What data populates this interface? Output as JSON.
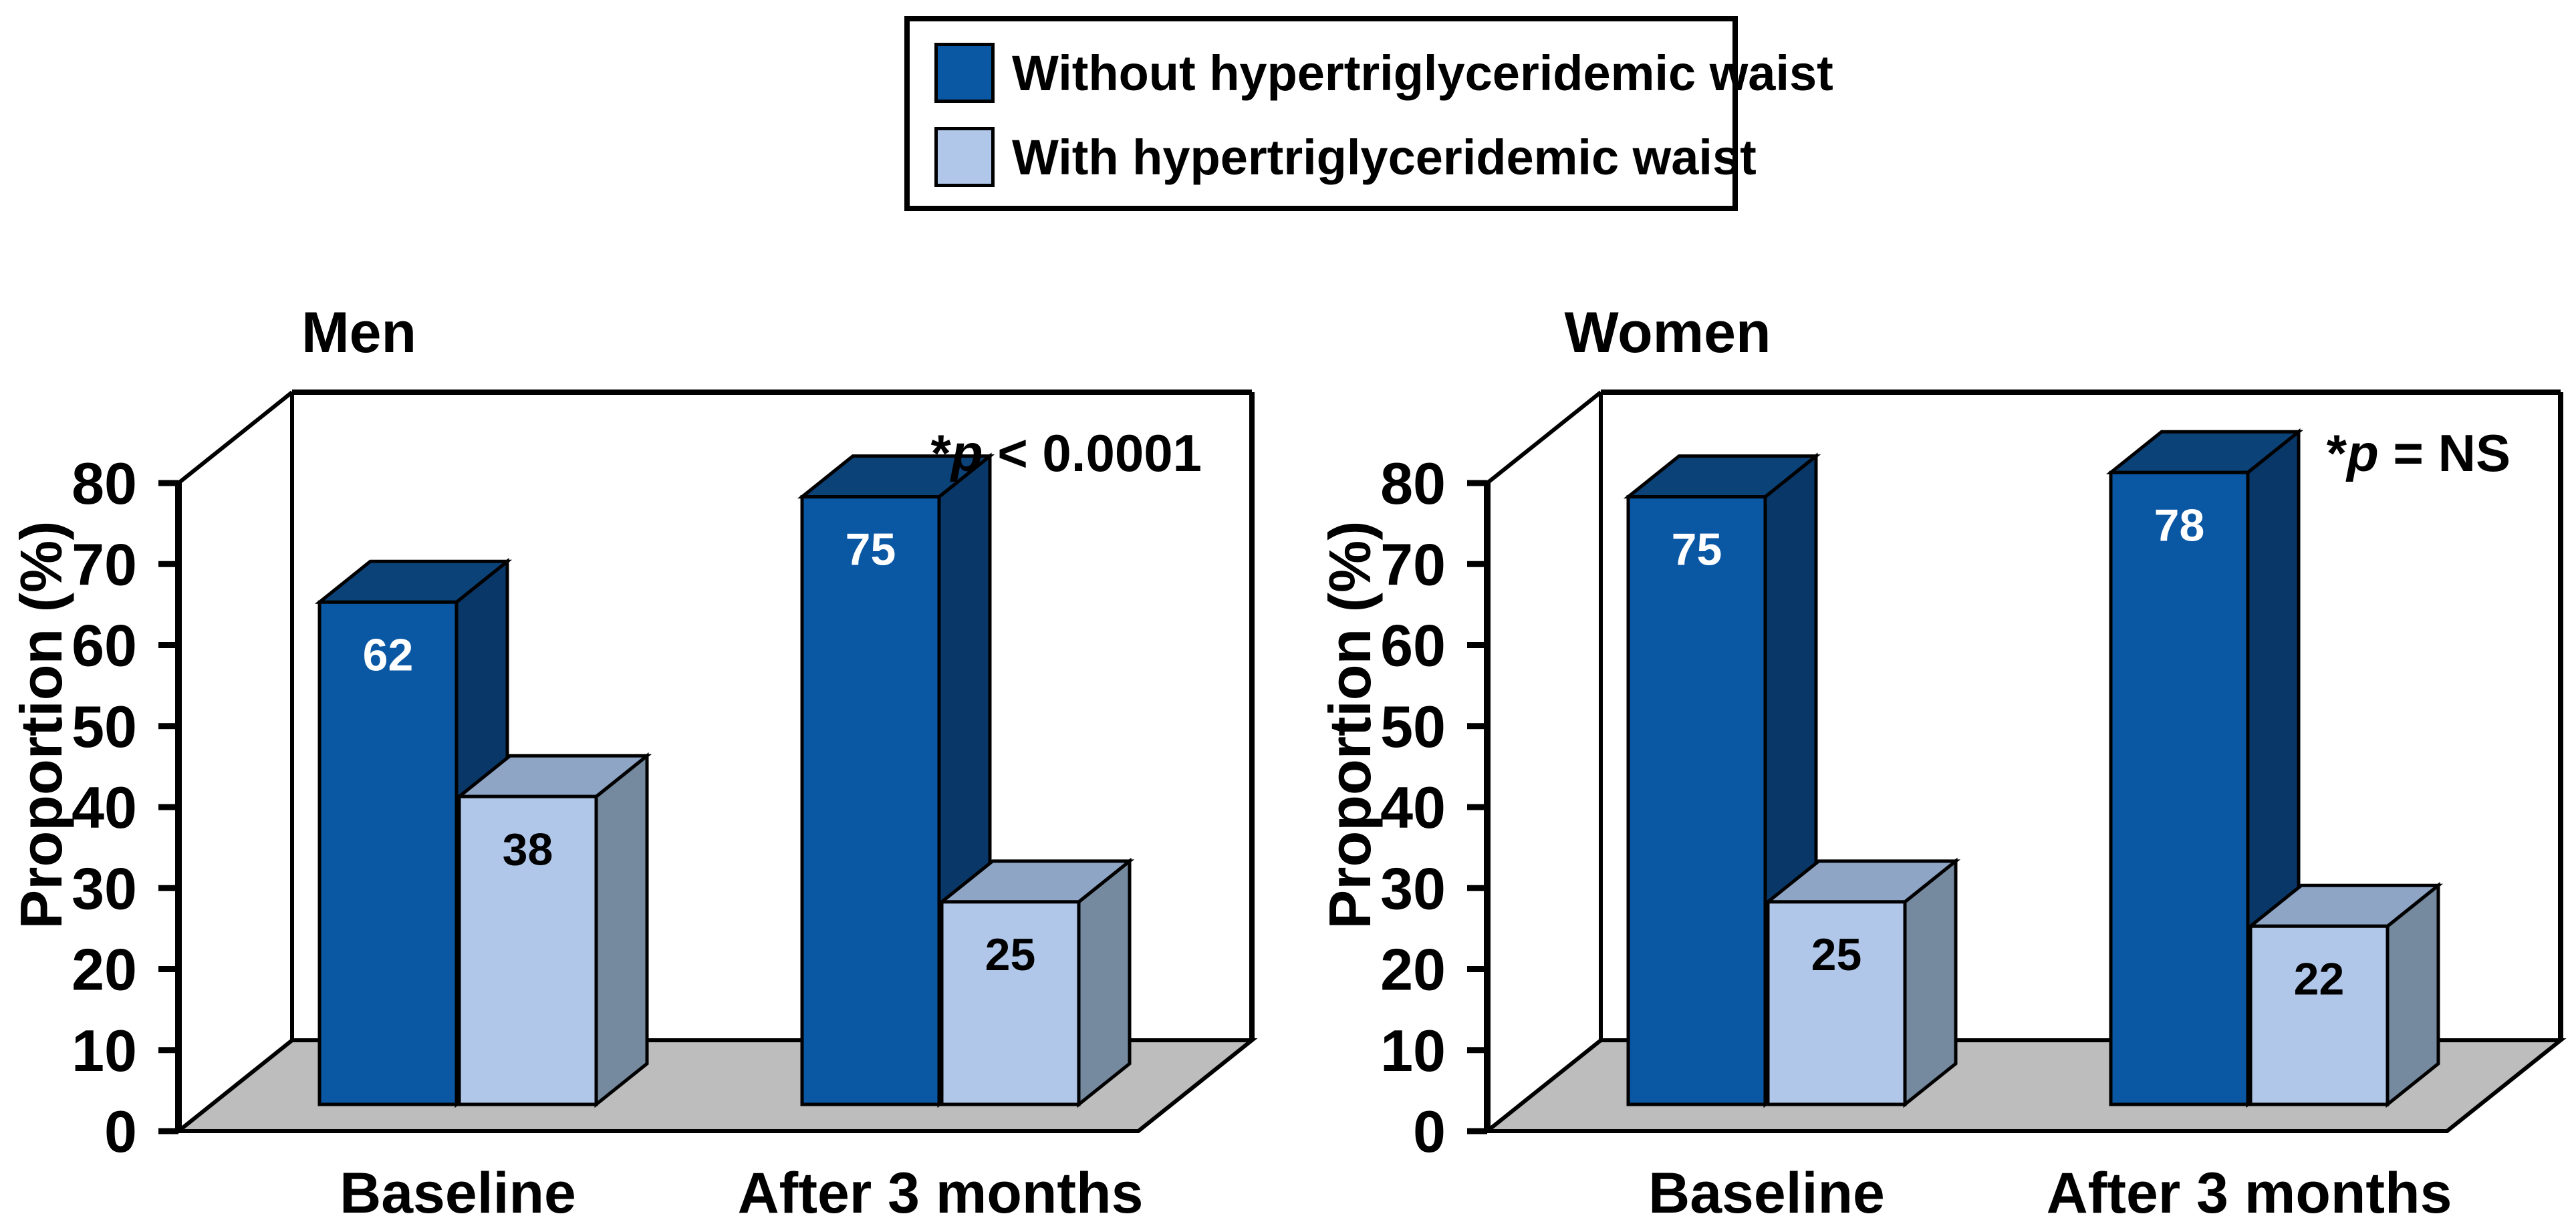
{
  "figure": {
    "background": "#FFFFFF",
    "description_text_visible": false
  },
  "legend": {
    "position": "top-center",
    "items": [
      {
        "label": "Without hypertriglyceridemic waist",
        "color": "#0A57A4"
      },
      {
        "label": "With hypertriglyceridemic waist",
        "color": "#B0C7E9"
      }
    ]
  },
  "colors": {
    "bar_dark_front": "#0A57A4",
    "bar_dark_top": "#0B4278",
    "bar_dark_side": "#093868",
    "bar_light_front": "#B0C7E9",
    "bar_light_top": "#8EA5C6",
    "bar_light_side": "#75899F",
    "floor": "#BDBDBD",
    "outline": "#000000",
    "value_label_on_dark": "#FFFFFF",
    "value_label_on_light": "#000000"
  },
  "chart_data": [
    {
      "type": "bar",
      "style": "3d",
      "title": "Men",
      "xlabel": "",
      "ylabel": "Proportion (%)",
      "ylim": [
        0,
        80
      ],
      "yticks": [
        0,
        10,
        20,
        30,
        40,
        50,
        60,
        70,
        80
      ],
      "grid": false,
      "categories": [
        "Baseline",
        "After 3 months"
      ],
      "series": [
        {
          "name": "Without hypertriglyceridemic waist",
          "color": "#0A57A4",
          "values": [
            62,
            75
          ]
        },
        {
          "name": "With hypertriglyceridemic waist",
          "color": "#B0C7E9",
          "values": [
            38,
            25
          ]
        }
      ],
      "annotation": {
        "star": "*",
        "variable": "p",
        "relation": "< 0.0001",
        "text": "*p < 0.0001"
      }
    },
    {
      "type": "bar",
      "style": "3d",
      "title": "Women",
      "xlabel": "",
      "ylabel": "Proportion (%)",
      "ylim": [
        0,
        80
      ],
      "yticks": [
        0,
        10,
        20,
        30,
        40,
        50,
        60,
        70,
        80
      ],
      "grid": false,
      "categories": [
        "Baseline",
        "After 3 months"
      ],
      "series": [
        {
          "name": "Without hypertriglyceridemic waist",
          "color": "#0A57A4",
          "values": [
            75,
            78
          ]
        },
        {
          "name": "With hypertriglyceridemic waist",
          "color": "#B0C7E9",
          "values": [
            25,
            22
          ]
        }
      ],
      "annotation": {
        "star": "*",
        "variable": "p",
        "relation": "= NS",
        "text": "*p = NS"
      }
    }
  ]
}
